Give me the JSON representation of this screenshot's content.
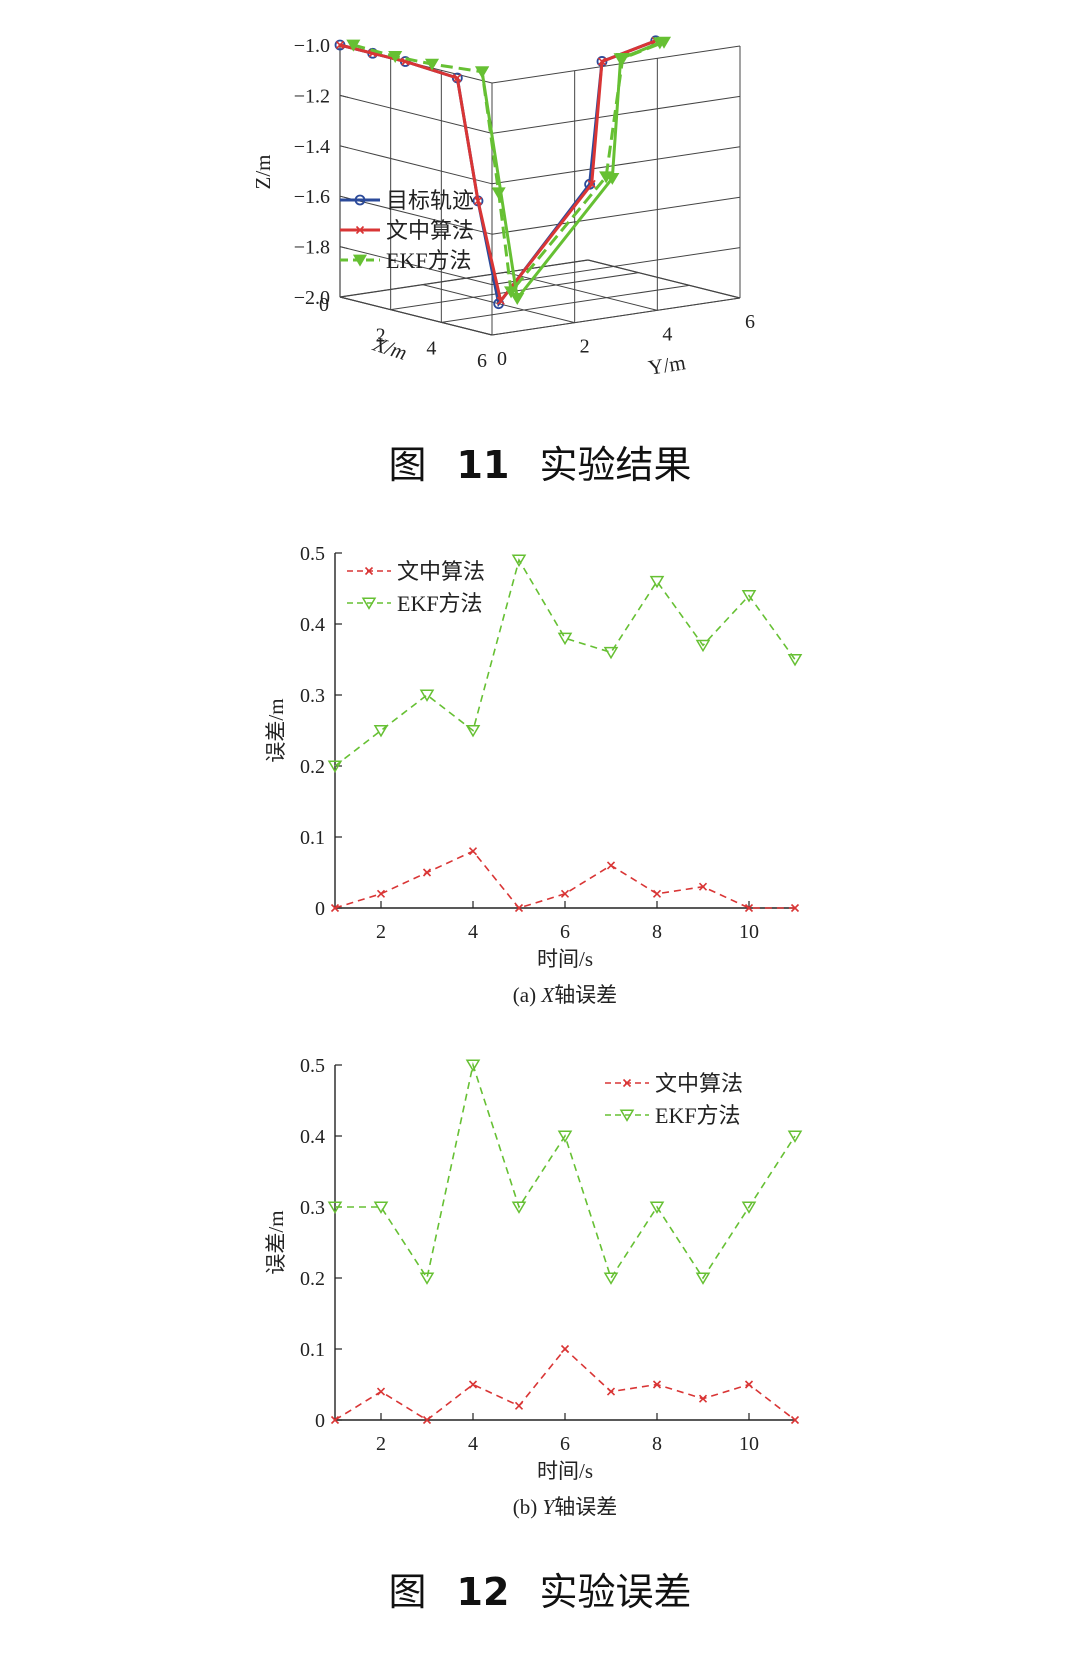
{
  "figure11": {
    "label": "图",
    "number": "11",
    "title": "实验结果"
  },
  "figure12": {
    "label": "图",
    "number": "12",
    "title": "实验误差"
  },
  "chart_data": [
    {
      "type": "line3d",
      "xlabel": "X/m",
      "ylabel": "Y/m",
      "zlabel": "Z/m",
      "xlim": [
        0,
        6
      ],
      "ylim": [
        0,
        6
      ],
      "zlim": [
        -2.0,
        -1.0
      ],
      "x_ticks": [
        "0",
        "2",
        "4",
        "6"
      ],
      "y_ticks": [
        "0",
        "2",
        "4",
        "6"
      ],
      "z_ticks": [
        "−1.0",
        "−1.2",
        "−1.4",
        "−1.6",
        "−1.8",
        "−2.0"
      ],
      "z_tick_values": [
        -1.0,
        -1.2,
        -1.4,
        -1.6,
        -1.8,
        -2.0
      ],
      "legend_position": "left",
      "series": [
        {
          "name": "目标轨迹",
          "color": "#2b4a9a",
          "marker": "circle",
          "dash": "solid",
          "points": [
            [
              0,
              0,
              -1.0
            ],
            [
              0.8,
              0.3,
              -1.02
            ],
            [
              1.6,
              0.6,
              -1.04
            ],
            [
              3.0,
              1.0,
              -1.08
            ],
            [
              3.0,
              1.5,
              -1.58
            ],
            [
              3.0,
              2.0,
              -2.0
            ],
            [
              3.0,
              4.2,
              -1.58
            ],
            [
              3.0,
              4.5,
              -1.1
            ],
            [
              3.0,
              5.8,
              -1.05
            ]
          ]
        },
        {
          "name": "文中算法",
          "color": "#d93535",
          "marker": "x",
          "dash": "solid",
          "points": [
            [
              0,
              0,
              -1.0
            ],
            [
              0.8,
              0.3,
              -1.02
            ],
            [
              1.6,
              0.6,
              -1.04
            ],
            [
              3.0,
              1.0,
              -1.08
            ],
            [
              3.0,
              1.5,
              -1.58
            ],
            [
              3.0,
              2.05,
              -1.99
            ],
            [
              3.0,
              4.25,
              -1.58
            ],
            [
              3.0,
              4.5,
              -1.1
            ],
            [
              3.0,
              5.8,
              -1.05
            ]
          ]
        },
        {
          "name": "EKF方法",
          "color": "#66c033",
          "marker": "triangle-down",
          "dash": "dashed",
          "points": [
            [
              0.2,
              0.2,
              -1.0
            ],
            [
              1.2,
              0.6,
              -1.03
            ],
            [
              2.0,
              1.0,
              -1.05
            ],
            [
              3.0,
              1.6,
              -1.07
            ],
            [
              3.0,
              2.0,
              -1.56
            ],
            [
              3.0,
              2.3,
              -1.96
            ],
            [
              3.0,
              4.6,
              -1.56
            ],
            [
              3.0,
              5.0,
              -1.1
            ],
            [
              3.0,
              6.0,
              -1.06
            ]
          ]
        },
        {
          "name": "",
          "color": "#66c033",
          "marker": "triangle-down",
          "dash": "solid",
          "points": [
            [
              3.0,
              1.6,
              -1.07
            ],
            [
              3.0,
              2.45,
              -1.99
            ],
            [
              3.0,
              4.75,
              -1.57
            ],
            [
              3.0,
              4.95,
              -1.1
            ],
            [
              3.0,
              5.9,
              -1.06
            ]
          ]
        }
      ]
    },
    {
      "type": "line",
      "caption_prefix": "(a)",
      "caption_var": "X",
      "caption_rest": "轴误差",
      "xlabel": "时间/s",
      "ylabel": "误差/m",
      "xlim": [
        1,
        11
      ],
      "ylim": [
        0,
        0.5
      ],
      "x_ticks": [
        2,
        4,
        6,
        8,
        10
      ],
      "y_ticks": [
        0,
        0.1,
        0.2,
        0.3,
        0.4,
        0.5
      ],
      "y_tick_labels": [
        "0",
        "0.1",
        "0.2",
        "0.3",
        "0.4",
        "0.5"
      ],
      "legend_position": "top-left",
      "x": [
        1,
        2,
        3,
        4,
        5,
        6,
        7,
        8,
        9,
        10,
        11
      ],
      "series": [
        {
          "name": "文中算法",
          "color": "#d93535",
          "marker": "x",
          "values": [
            0,
            0.02,
            0.05,
            0.08,
            0,
            0.02,
            0.06,
            0.02,
            0.03,
            0,
            0
          ]
        },
        {
          "name": "EKF方法",
          "color": "#66c033",
          "marker": "triangle-down",
          "values": [
            0.2,
            0.25,
            0.3,
            0.25,
            0.49,
            0.38,
            0.36,
            0.46,
            0.37,
            0.44,
            0.35
          ]
        }
      ]
    },
    {
      "type": "line",
      "caption_prefix": "(b)",
      "caption_var": "Y",
      "caption_rest": "轴误差",
      "xlabel": "时间/s",
      "ylabel": "误差/m",
      "xlim": [
        1,
        11
      ],
      "ylim": [
        0,
        0.5
      ],
      "x_ticks": [
        2,
        4,
        6,
        8,
        10
      ],
      "y_ticks": [
        0,
        0.1,
        0.2,
        0.3,
        0.4,
        0.5
      ],
      "y_tick_labels": [
        "0",
        "0.1",
        "0.2",
        "0.3",
        "0.4",
        "0.5"
      ],
      "legend_position": "top-right",
      "x": [
        1,
        2,
        3,
        4,
        5,
        6,
        7,
        8,
        9,
        10,
        11
      ],
      "series": [
        {
          "name": "文中算法",
          "color": "#d93535",
          "marker": "x",
          "values": [
            0,
            0.04,
            0,
            0.05,
            0.02,
            0.1,
            0.04,
            0.05,
            0.03,
            0.05,
            0
          ]
        },
        {
          "name": "EKF方法",
          "color": "#66c033",
          "marker": "triangle-down",
          "values": [
            0.3,
            0.3,
            0.2,
            0.5,
            0.3,
            0.4,
            0.2,
            0.3,
            0.2,
            0.3,
            0.4
          ]
        }
      ]
    }
  ]
}
